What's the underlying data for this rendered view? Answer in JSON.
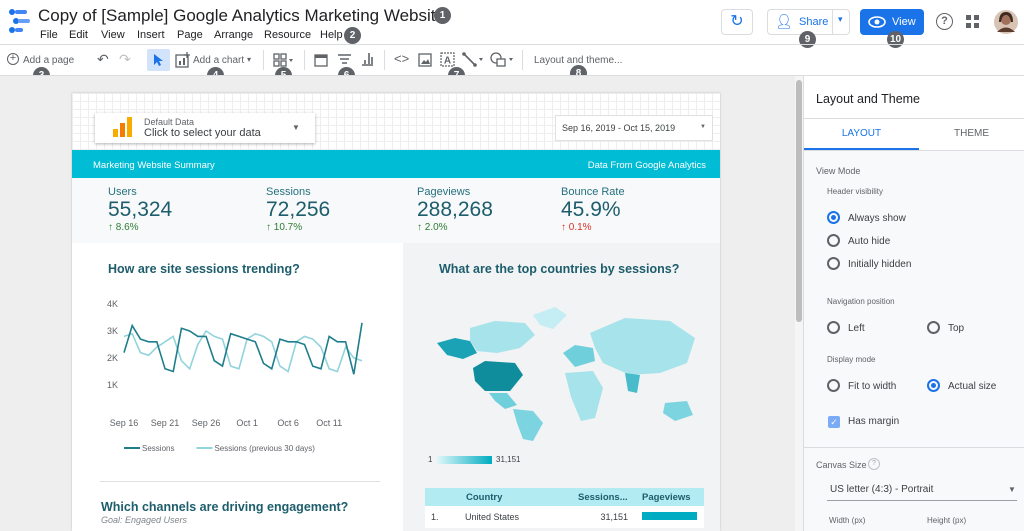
{
  "header": {
    "title": "Copy of [Sample] Google Analytics Marketing Website",
    "menu": [
      "File",
      "Edit",
      "View",
      "Insert",
      "Page",
      "Arrange",
      "Resource",
      "Help"
    ],
    "share": "Share",
    "view": "View"
  },
  "badges": [
    "1",
    "2",
    "3",
    "4",
    "5",
    "6",
    "7",
    "8",
    "9",
    "10"
  ],
  "toolbar": {
    "add_page": "Add a page",
    "add_chart": "Add a chart",
    "layout_theme": "Layout and theme..."
  },
  "report": {
    "data_source": {
      "label": "Default Data",
      "prompt": "Click to select your data"
    },
    "date_range": "Sep 16, 2019 - Oct 15, 2019",
    "banner_left": "Marketing Website Summary",
    "banner_right": "Data From Google Analytics",
    "kpis": [
      {
        "name": "Users",
        "value": "55,324",
        "change": "8.6%"
      },
      {
        "name": "Sessions",
        "value": "72,256",
        "change": "10.7%"
      },
      {
        "name": "Pageviews",
        "value": "288,268",
        "change": "2.0%"
      },
      {
        "name": "Bounce Rate",
        "value": "45.9%",
        "change": "0.1%"
      }
    ],
    "map": {
      "title": "What are the top countries by sessions?",
      "legend_min": "1",
      "legend_max": "31,151"
    },
    "channels": {
      "title": "Which channels are driving engagement?",
      "subtitle": "Goal: Engaged Users"
    },
    "table": {
      "headers": [
        "Country",
        "Sessions...",
        "Pageviews"
      ],
      "rows": [
        [
          "1.",
          "United States",
          "31,151"
        ]
      ]
    }
  },
  "chart_data": {
    "type": "line",
    "title": "How are site sessions trending?",
    "categories": [
      "Sep 16",
      null,
      null,
      null,
      null,
      "Sep 21",
      null,
      null,
      null,
      null,
      "Sep 26",
      null,
      null,
      null,
      null,
      "Oct 1",
      null,
      null,
      null,
      null,
      "Oct 6",
      null,
      null,
      null,
      null,
      "Oct 11",
      null,
      null,
      null,
      null
    ],
    "series": [
      {
        "name": "Sessions",
        "color": "#1f7d8c",
        "values": [
          2200,
          3200,
          2700,
          2600,
          2600,
          1600,
          1500,
          3100,
          3000,
          2800,
          2800,
          1900,
          1700,
          2900,
          2800,
          2700,
          2600,
          1800,
          1600,
          2700,
          2600,
          2600,
          2500,
          1700,
          1600,
          2800,
          2600,
          2600,
          1400,
          3300
        ]
      },
      {
        "name": "Sessions (previous 30 days)",
        "color": "#93d3dc",
        "values": [
          2800,
          2900,
          2200,
          2100,
          2400,
          2600,
          2800,
          1900,
          1600,
          2500,
          3000,
          2800,
          2700,
          1700,
          1600,
          2700,
          2900,
          2800,
          2600,
          1700,
          1500,
          2600,
          2800,
          2700,
          2400,
          1600,
          1500,
          2400,
          2000,
          1900
        ]
      }
    ],
    "ylim": [
      500,
      4000
    ],
    "yticks": [
      {
        "value": 1000,
        "label": "1K"
      },
      {
        "value": 2000,
        "label": "2K"
      },
      {
        "value": 3000,
        "label": "3K"
      },
      {
        "value": 4000,
        "label": "4K"
      }
    ],
    "grid": false
  },
  "panel": {
    "title": "Layout and Theme",
    "tabs": [
      "LAYOUT",
      "THEME"
    ],
    "view_mode": "View Mode",
    "header_visibility": "Header visibility",
    "header_options": [
      "Always show",
      "Auto hide",
      "Initially hidden"
    ],
    "navigation_position": "Navigation position",
    "nav_options": [
      "Left",
      "Top"
    ],
    "display_mode": "Display mode",
    "display_options": [
      "Fit to width",
      "Actual size"
    ],
    "has_margin": "Has margin",
    "canvas_size": "Canvas Size",
    "canvas_value": "US letter (4:3) - Portrait",
    "width": "Width (px)",
    "height": "Height (px)"
  }
}
